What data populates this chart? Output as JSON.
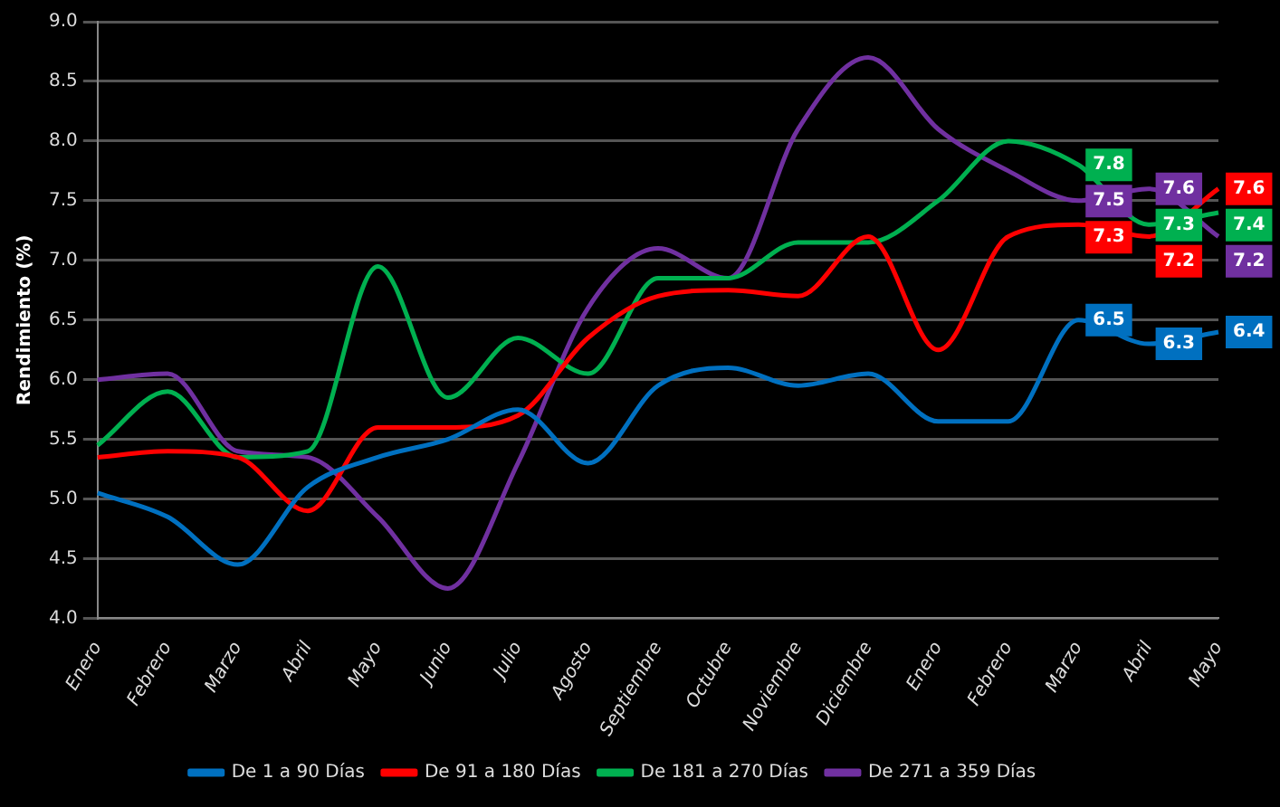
{
  "chart_data": {
    "type": "line",
    "ylabel": "Rendimiento (%)",
    "categories": [
      "Enero",
      "Febrero",
      "Marzo",
      "Abril",
      "Mayo",
      "Junio",
      "Julio",
      "Agosto",
      "Septiembre",
      "Octubre",
      "Noviembre",
      "Diciembre",
      "Enero",
      "Febrero",
      "Marzo",
      "Abril",
      "Mayo"
    ],
    "ylim": [
      4.0,
      9.0
    ],
    "yticks": [
      {
        "value": 4.0,
        "label": "4.0"
      },
      {
        "value": 4.5,
        "label": "4.5"
      },
      {
        "value": 5.0,
        "label": "5.0"
      },
      {
        "value": 5.5,
        "label": "5.5"
      },
      {
        "value": 6.0,
        "label": "6.0"
      },
      {
        "value": 6.5,
        "label": "6.5"
      },
      {
        "value": 7.0,
        "label": "7.0"
      },
      {
        "value": 7.5,
        "label": "7.5"
      },
      {
        "value": 8.0,
        "label": "8.0"
      },
      {
        "value": 8.5,
        "label": "8.5"
      },
      {
        "value": 9.0,
        "label": "9.0"
      }
    ],
    "grid": "y",
    "legend": "bottom",
    "marker": "none",
    "line_style": "solid",
    "series": [
      {
        "name": "De 1 a 90 Días",
        "color": "#0070c0",
        "values": [
          5.05,
          4.85,
          4.45,
          5.1,
          5.35,
          5.5,
          5.75,
          5.3,
          5.95,
          6.1,
          5.95,
          6.05,
          5.65,
          5.65,
          6.5,
          6.3,
          6.4
        ],
        "value_labels": [
          null,
          null,
          null,
          null,
          null,
          null,
          null,
          null,
          null,
          null,
          null,
          null,
          null,
          null,
          "6.5",
          "6.3",
          "6.4"
        ]
      },
      {
        "name": "De 91 a 180 Días",
        "color": "#ff0000",
        "values": [
          5.35,
          5.4,
          5.35,
          4.9,
          5.6,
          5.6,
          5.7,
          6.35,
          6.7,
          6.75,
          6.7,
          7.2,
          6.25,
          7.2,
          7.3,
          7.2,
          7.6
        ],
        "value_labels": [
          null,
          null,
          null,
          null,
          null,
          null,
          null,
          null,
          null,
          null,
          null,
          null,
          null,
          null,
          "7.3",
          "7.2",
          "7.6"
        ]
      },
      {
        "name": "De 181 a 270 Días",
        "color": "#00b050",
        "values": [
          5.45,
          5.9,
          5.35,
          5.4,
          6.95,
          5.85,
          6.35,
          6.05,
          6.85,
          6.85,
          7.15,
          7.15,
          7.5,
          8.0,
          7.8,
          7.3,
          7.4
        ],
        "value_labels": [
          null,
          null,
          null,
          null,
          null,
          null,
          null,
          null,
          null,
          null,
          null,
          null,
          null,
          null,
          "7.8",
          "7.3",
          "7.4"
        ]
      },
      {
        "name": "De 271 a 359 Días",
        "color": "#7030a0",
        "values": [
          6.0,
          6.05,
          5.4,
          5.35,
          4.85,
          4.25,
          5.3,
          6.6,
          7.1,
          6.85,
          8.1,
          8.7,
          8.1,
          7.75,
          7.5,
          7.6,
          7.2
        ],
        "value_labels": [
          null,
          null,
          null,
          null,
          null,
          null,
          null,
          null,
          null,
          null,
          null,
          null,
          null,
          null,
          "7.5",
          "7.6",
          "7.2"
        ]
      }
    ]
  }
}
